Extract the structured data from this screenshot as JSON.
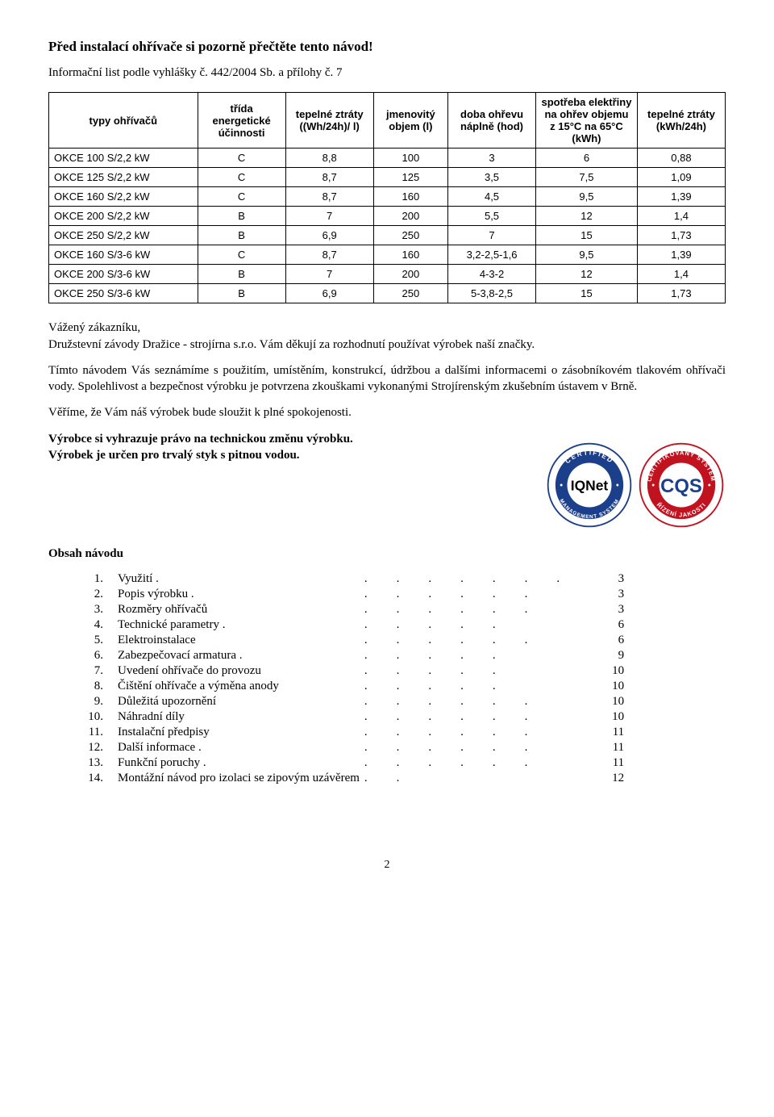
{
  "heading": "Před instalací ohřívače si pozorně přečtěte tento návod!",
  "info_line": "Informační list podle vyhlášky č. 442/2004 Sb. a přílohy č. 7",
  "table": {
    "columns": [
      "typy ohřívačů",
      "třída energetické účinnosti",
      "tepelné ztráty ((Wh/24h)/ l)",
      "jmenovitý objem (l)",
      "doba ohřevu náplně (hod)",
      "spotřeba elektřiny na ohřev objemu z 15°C na 65°C (kWh)",
      "tepelné ztráty (kWh/24h)"
    ],
    "col_widths": [
      "22%",
      "13%",
      "13%",
      "11%",
      "13%",
      "15%",
      "13%"
    ],
    "rows": [
      [
        "OKCE 100 S/2,2 kW",
        "C",
        "8,8",
        "100",
        "3",
        "6",
        "0,88"
      ],
      [
        "OKCE 125 S/2,2 kW",
        "C",
        "8,7",
        "125",
        "3,5",
        "7,5",
        "1,09"
      ],
      [
        "OKCE 160 S/2,2 kW",
        "C",
        "8,7",
        "160",
        "4,5",
        "9,5",
        "1,39"
      ],
      [
        "OKCE 200 S/2,2 kW",
        "B",
        "7",
        "200",
        "5,5",
        "12",
        "1,4"
      ],
      [
        "OKCE 250 S/2,2 kW",
        "B",
        "6,9",
        "250",
        "7",
        "15",
        "1,73"
      ],
      [
        "OKCE 160 S/3-6 kW",
        "C",
        "8,7",
        "160",
        "3,2-2,5-1,6",
        "9,5",
        "1,39"
      ],
      [
        "OKCE 200 S/3-6 kW",
        "B",
        "7",
        "200",
        "4-3-2",
        "12",
        "1,4"
      ],
      [
        "OKCE 250 S/3-6 kW",
        "B",
        "6,9",
        "250",
        "5-3,8-2,5",
        "15",
        "1,73"
      ]
    ]
  },
  "para1_l1": "Vážený zákazníku,",
  "para1_l2": "Družstevní závody Dražice - strojírna s.r.o. Vám děkují za rozhodnutí používat výrobek naší značky.",
  "para2": "Tímto návodem Vás seznámíme s použitím, umístěním, konstrukcí, údržbou a dalšími informacemi o zásobníkovém tlakovém ohřívači vody. Spolehlivost a bezpečnost výrobku je potvrzena zkouškami vykonanými Strojírenským zkušebním ústavem v Brně.",
  "para3": "Věříme, že Vám náš výrobek bude sloužit k plné spokojenosti.",
  "para4_l1": "Výrobce si vyhrazuje právo na technickou změnu výrobku.",
  "para4_l2": "Výrobek je určen pro trvalý styk s pitnou vodou.",
  "obsah_heading": "Obsah návodu",
  "toc": [
    {
      "n": "1.",
      "t": "Využití .",
      "dots": 7,
      "p": "3"
    },
    {
      "n": "2.",
      "t": "Popis výrobku .",
      "dots": 6,
      "p": "3"
    },
    {
      "n": "3.",
      "t": "Rozměry ohřívačů",
      "dots": 6,
      "p": "3"
    },
    {
      "n": "4.",
      "t": "Technické parametry .",
      "dots": 5,
      "p": "6"
    },
    {
      "n": "5.",
      "t": "Elektroinstalace",
      "dots": 6,
      "p": "6"
    },
    {
      "n": "6.",
      "t": "Zabezpečovací armatura .",
      "dots": 5,
      "p": "9"
    },
    {
      "n": "7.",
      "t": "Uvedení ohřívače do provozu",
      "dots": 5,
      "p": "10"
    },
    {
      "n": "8.",
      "t": "Čištění ohřívače a výměna anody",
      "dots": 5,
      "p": "10"
    },
    {
      "n": "9.",
      "t": "Důležitá upozornění",
      "dots": 6,
      "p": "10"
    },
    {
      "n": "10.",
      "t": "Náhradní díly",
      "dots": 6,
      "p": "10"
    },
    {
      "n": "11.",
      "t": "Instalační předpisy",
      "dots": 6,
      "p": "11"
    },
    {
      "n": "12.",
      "t": "Další informace .",
      "dots": 6,
      "p": "11"
    },
    {
      "n": "13.",
      "t": "Funkční poruchy .",
      "dots": 6,
      "p": "11"
    },
    {
      "n": "14.",
      "t": "Montážní návod pro izolaci se zipovým uzávěrem",
      "dots": 2,
      "p": "12"
    }
  ],
  "page_number": "2",
  "badges": {
    "iqnet": {
      "outer_color": "#1c3f8b",
      "text_color": "#000000",
      "label_top": "CERTIFIED",
      "label_bottom": "MANAGEMENT SYSTEM",
      "center": "IQNet"
    },
    "cqs": {
      "outer_color": "#c1121f",
      "text_color": "#1c3f8b",
      "label_top": "CERTIFIKOVANÝ SYSTÉM",
      "label_bottom": "ŘÍZENÍ JAKOSTI",
      "center": "CQS"
    }
  }
}
